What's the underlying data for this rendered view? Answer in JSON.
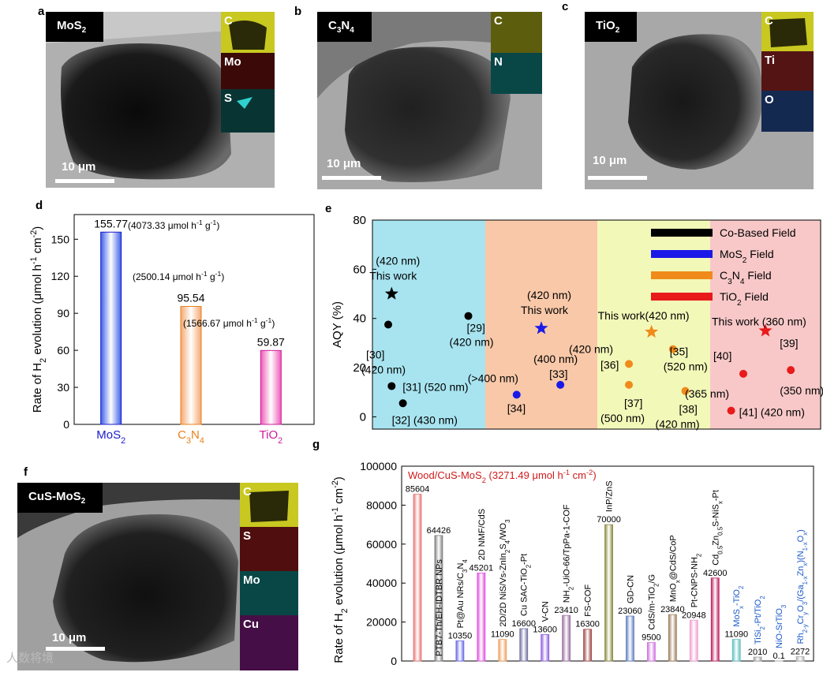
{
  "panels": {
    "a": "a",
    "b": "b",
    "c": "c",
    "d": "d",
    "e": "e",
    "f": "f",
    "g": "g"
  },
  "sem_images": [
    {
      "id": "a",
      "label": "MoS2",
      "label_main": "MoS",
      "label_sub": "2",
      "scale": "10 μm",
      "maps": [
        {
          "label": "C",
          "color": "#d6d62a"
        },
        {
          "label": "Mo",
          "color": "#a01a1a"
        },
        {
          "label": "S",
          "color": "#1ab0b0"
        }
      ]
    },
    {
      "id": "b",
      "label_main": "C",
      "label_sub": "3",
      "label_main2": "N",
      "label_sub2": "4",
      "scale": "10 μm",
      "maps": [
        {
          "label": "C",
          "color": "#c8c830"
        },
        {
          "label": "N",
          "color": "#1aa0a0"
        }
      ]
    },
    {
      "id": "c",
      "label_main": "TiO",
      "label_sub": "2",
      "scale": "10 μm",
      "maps": [
        {
          "label": "C",
          "color": "#d6d62a"
        },
        {
          "label": "Ti",
          "color": "#a02020"
        },
        {
          "label": "O",
          "color": "#2a5aa0"
        }
      ]
    },
    {
      "id": "f",
      "label_main": "CuS-MoS",
      "label_sub": "2",
      "scale": "10 μm",
      "maps": [
        {
          "label": "C",
          "color": "#d6d62a"
        },
        {
          "label": "S",
          "color": "#b01818"
        },
        {
          "label": "Mo",
          "color": "#1ab0b0"
        },
        {
          "label": "Cu",
          "color": "#c020c0"
        }
      ]
    }
  ],
  "chart_data": [
    {
      "panel": "d",
      "type": "bar",
      "ylabel": "Rate of H2 evolution (μmol h-1 cm-2)",
      "ylim": [
        0,
        170
      ],
      "yticks": [
        0,
        30,
        60,
        90,
        120,
        150
      ],
      "categories": [
        "MoS2",
        "C3N4",
        "TiO2"
      ],
      "values": [
        155.77,
        95.54,
        59.87
      ],
      "value_labels": [
        "155.77",
        "95.54",
        "59.87"
      ],
      "annotations": [
        "(4073.33 μmol h-1 g-1)",
        "(2500.14 μmol h-1 g-1)",
        "(1566.67 μmol h-1 g-1)"
      ],
      "category_colors": [
        "#1a1acc",
        "#e8801a",
        "#cc1a9a"
      ],
      "bar_colors": [
        "#3d5ee8",
        "#f5a870",
        "#ee5ab8"
      ]
    },
    {
      "panel": "e",
      "type": "scatter",
      "ylabel": "AQY (%)",
      "ylim": [
        -5,
        80
      ],
      "yticks": [
        0,
        20,
        40,
        60,
        80
      ],
      "regions": [
        {
          "name": "Co-Based Field",
          "color": "#a8e4f0",
          "legend_color": "#000000"
        },
        {
          "name": "MoS2 Field",
          "color": "#f8c8a8",
          "legend_color": "#1a1ae8"
        },
        {
          "name": "C3N4 Field",
          "color": "#f2f8b8",
          "legend_color": "#f08a1a"
        },
        {
          "name": "TiO2 Field",
          "color": "#f8c8c8",
          "legend_color": "#e81a1a"
        }
      ],
      "legend": [
        "Co-Based Field",
        "MoS2 Field",
        "C3N4 Field",
        "TiO2 Field"
      ],
      "points": [
        {
          "region": 0,
          "x": 0.17,
          "y": 50,
          "marker": "star",
          "color": "#000000",
          "labels": [
            "(420 nm)",
            "This work"
          ]
        },
        {
          "region": 0,
          "x": 0.14,
          "y": 37.5,
          "marker": "dot",
          "color": "#000000",
          "labels": [
            "[30]",
            "(420 nm)"
          ]
        },
        {
          "region": 0,
          "x": 0.85,
          "y": 41,
          "marker": "dot",
          "color": "#000000",
          "labels": [
            "[29]",
            "(420 nm)"
          ]
        },
        {
          "region": 0,
          "x": 0.17,
          "y": 12.5,
          "marker": "dot",
          "color": "#000000",
          "labels": [
            "[31] (520 nm)"
          ]
        },
        {
          "region": 0,
          "x": 0.27,
          "y": 5.5,
          "marker": "dot",
          "color": "#000000",
          "labels": [
            "[32] (430 nm)"
          ]
        },
        {
          "region": 1,
          "x": 0.5,
          "y": 36,
          "marker": "star",
          "color": "#1a1ae8",
          "labels": [
            "(420 nm)",
            "This work"
          ]
        },
        {
          "region": 1,
          "x": 0.67,
          "y": 13,
          "marker": "dot",
          "color": "#1a1ae8",
          "labels": [
            "(400 nm)",
            "[33]"
          ]
        },
        {
          "region": 1,
          "x": 0.28,
          "y": 9,
          "marker": "dot",
          "color": "#1a1ae8",
          "labels": [
            "(>400 nm)",
            "[34]"
          ]
        },
        {
          "region": 2,
          "x": 0.48,
          "y": 34.5,
          "marker": "star",
          "color": "#f08a1a",
          "labels": [
            "This work(420 nm)"
          ]
        },
        {
          "region": 2,
          "x": 0.67,
          "y": 27.5,
          "marker": "dot",
          "color": "#f08a1a",
          "labels": [
            "[35]",
            "(520 nm)"
          ]
        },
        {
          "region": 2,
          "x": 0.28,
          "y": 21.5,
          "marker": "dot",
          "color": "#f08a1a",
          "labels": [
            "(420 nm)",
            "[36]"
          ]
        },
        {
          "region": 2,
          "x": 0.28,
          "y": 13,
          "marker": "dot",
          "color": "#f08a1a",
          "labels": [
            "[37]",
            "(500 nm)"
          ]
        },
        {
          "region": 2,
          "x": 0.78,
          "y": 10.5,
          "marker": "dot",
          "color": "#f08a1a",
          "labels": [
            "[38]",
            "(420 nm)"
          ]
        },
        {
          "region": 3,
          "x": 0.5,
          "y": 35,
          "marker": "star",
          "color": "#e81a1a",
          "labels": [
            "This work (360 nm)"
          ]
        },
        {
          "region": 3,
          "x": 0.3,
          "y": 17.5,
          "marker": "dot",
          "color": "#e81a1a",
          "labels": [
            "[40]",
            "(365 nm)"
          ]
        },
        {
          "region": 3,
          "x": 0.73,
          "y": 19,
          "marker": "dot",
          "color": "#e81a1a",
          "labels": [
            "[39]",
            "(350 nm)"
          ]
        },
        {
          "region": 3,
          "x": 0.19,
          "y": 2.5,
          "marker": "dot",
          "color": "#e81a1a",
          "labels": [
            "[41] (420 nm)"
          ]
        }
      ]
    },
    {
      "panel": "g",
      "type": "bar",
      "ylabel": "Rate of H2 evolution (μmol h-1 cm-2)",
      "ylim": [
        0,
        100000
      ],
      "yticks": [
        0,
        20000,
        40000,
        60000,
        80000,
        100000
      ],
      "ytick_labels": [
        "0",
        "20000",
        "40000",
        "60000",
        "80000",
        "100000"
      ],
      "title": "Wood/CuS-MoS2 (3271.49 μmol h-1 cm-2)",
      "categories": [
        "Wood/CuS-MoS2",
        "PTB7-Th/EH-IDTBR NPs",
        "Pt@Au NRs/C3N4",
        "2D NMF/CdS",
        "2D/2D NiS/Vs-ZnIn2S4/WO3",
        "Cu SAC-TiO2-Pt",
        "V-CN",
        "NH2-UiO-66/TpPa-1-COF",
        "FS-COF",
        "InP/ZnS",
        "GD-CN",
        "CdS/m-TiO2/G",
        "MnOx@CdS/CoP",
        "Pt-CNPS-NH2",
        "Cd0.5Zn0.5S-NiSx-Pt",
        "MoSx-TiO2",
        "TiSi2-Pt/TiO2",
        "NiO-SrTiO3",
        "Rh2-yCryO3/(Ga1-xZnx)(N1-xOx)"
      ],
      "values": [
        85604,
        64426,
        10350,
        45201,
        11090,
        16600,
        13600,
        23410,
        16300,
        70000,
        23060,
        9500,
        23840,
        20948,
        42600,
        11090,
        2010,
        0.1,
        2272
      ],
      "value_labels": [
        "85604",
        "64426",
        "10350",
        "45201",
        "11090",
        "16600",
        "13600",
        "23410",
        "16300",
        "70000",
        "23060",
        "9500",
        "23840",
        "20948",
        "42600",
        "11090",
        "2010",
        "0.1",
        "2272"
      ],
      "bar_colors": [
        "#e87878",
        "#808080",
        "#6a6ae8",
        "#e050e0",
        "#f0a060",
        "#7070a0",
        "#9060e0",
        "#9a70a0",
        "#a04848",
        "#8a8a40",
        "#6080c0",
        "#d070e0",
        "#a08060",
        "#f0a0d0",
        "#c02060",
        "#60c0c0",
        "#a0a0a0",
        "#d0d0d0",
        "#b0b0b0"
      ],
      "label_colors": [
        "#d01a1a",
        "#000000",
        "#000000",
        "#000000",
        "#000000",
        "#000000",
        "#000000",
        "#000000",
        "#000000",
        "#000000",
        "#000000",
        "#000000",
        "#000000",
        "#000000",
        "#000000",
        "#1a5ac8",
        "#1a5ac8",
        "#1a5ac8",
        "#1a5ac8"
      ]
    }
  ],
  "watermark": "人数将境"
}
